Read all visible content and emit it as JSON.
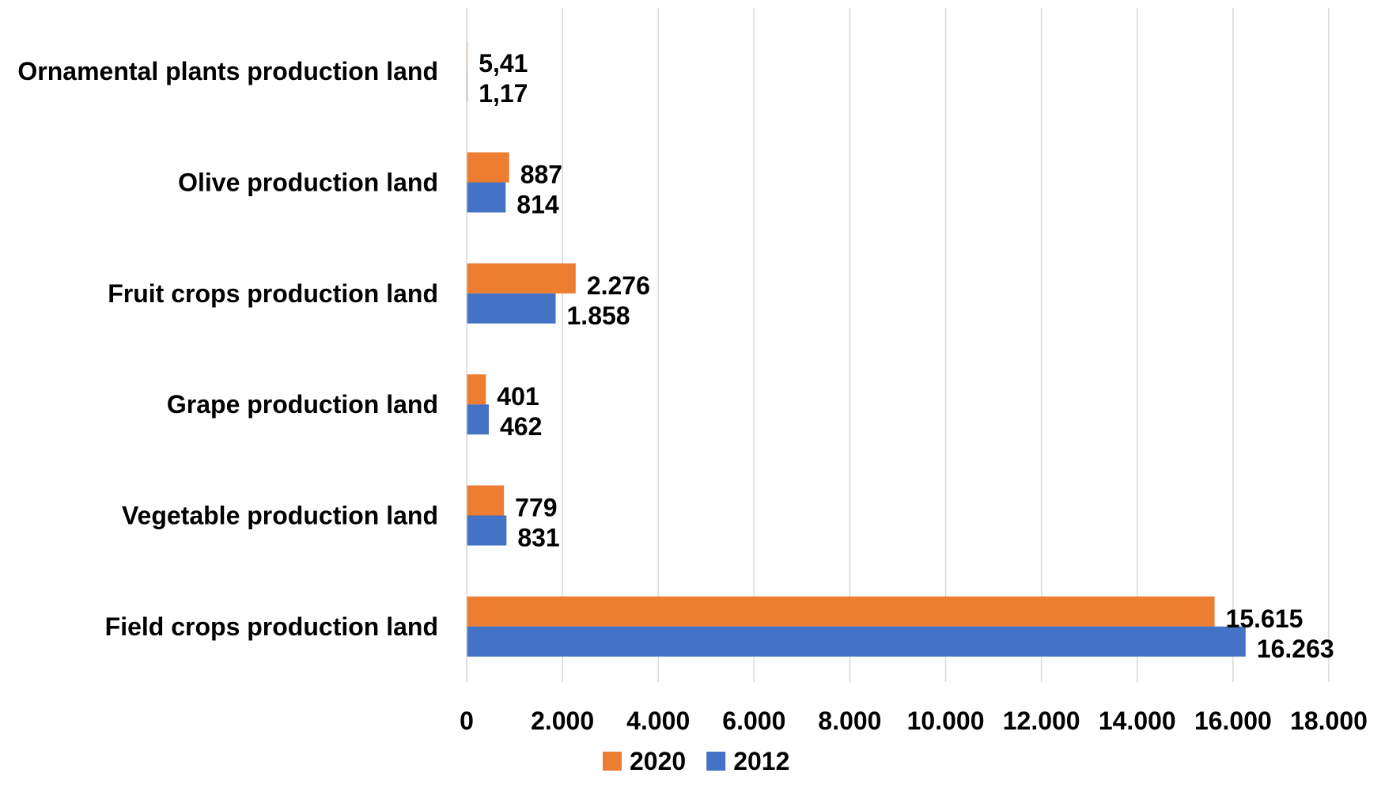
{
  "chart_data": {
    "type": "bar",
    "orientation": "horizontal",
    "categories": [
      "Ornamental plants production land",
      "Olive production land",
      "Fruit crops production land",
      "Grape production land",
      "Vegetable production land",
      "Field crops production land"
    ],
    "series": [
      {
        "name": "2020",
        "color": "#ED7D31",
        "values": [
          5.41,
          887,
          2276,
          401,
          779,
          15615
        ],
        "labels": [
          "5,41",
          "887",
          "2.276",
          "401",
          "779",
          "15.615"
        ]
      },
      {
        "name": "2012",
        "color": "#4472C4",
        "values": [
          1.17,
          814,
          1858,
          462,
          831,
          16263
        ],
        "labels": [
          "1,17",
          "814",
          "1.858",
          "462",
          "831",
          "16.263"
        ]
      }
    ],
    "xlim": [
      0,
      18000
    ],
    "xticks": [
      0,
      2000,
      4000,
      6000,
      8000,
      10000,
      12000,
      14000,
      16000,
      18000
    ],
    "xtick_labels": [
      "0",
      "2.000",
      "4.000",
      "6.000",
      "8.000",
      "10.000",
      "12.000",
      "14.000",
      "16.000",
      "18.000"
    ],
    "grid": true,
    "legend": {
      "position": "bottom",
      "entries": [
        "2020",
        "2012"
      ]
    },
    "title": "",
    "xlabel": "",
    "ylabel": "",
    "gridline_color": "#D9D9D9",
    "axis_color": "#D9D9D9"
  }
}
